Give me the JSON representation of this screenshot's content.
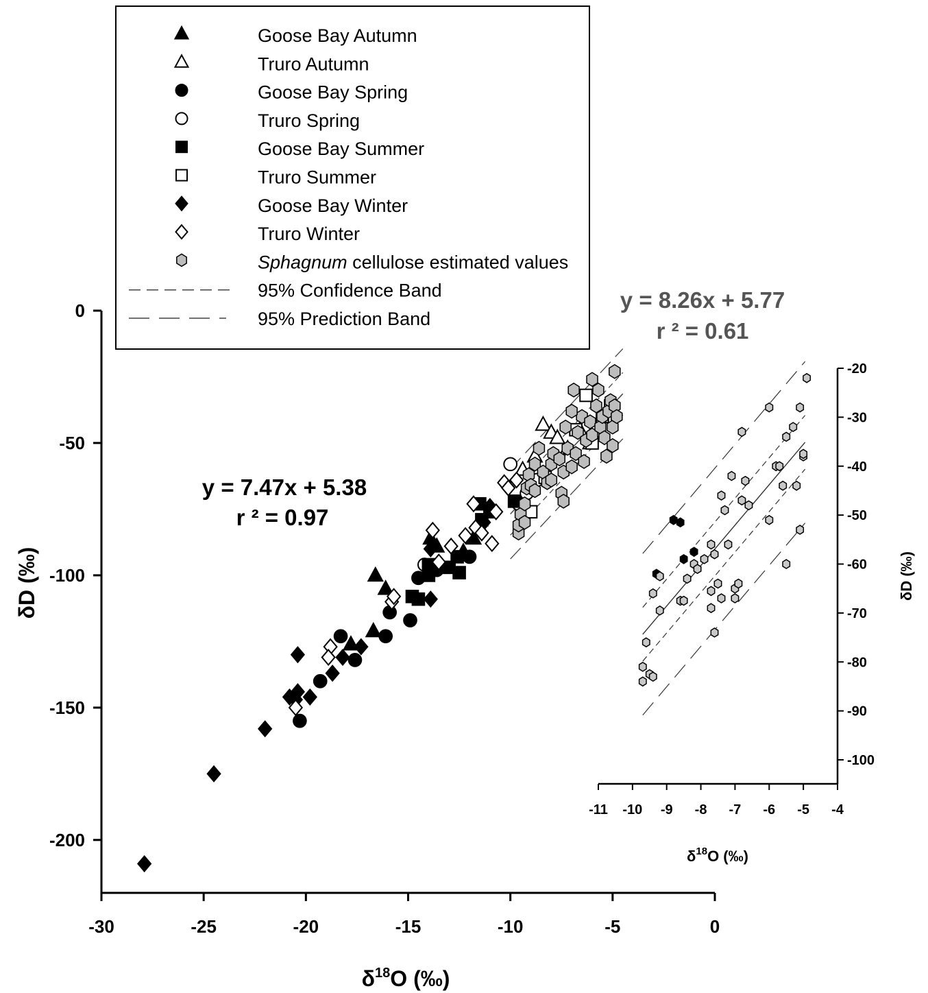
{
  "chart_data": [
    {
      "type": "scatter",
      "xlabel_prefix": "δ",
      "xlabel_sup": "18",
      "xlabel_suffix": "O (‰)",
      "ylabel": "δD (‰)",
      "xlim": [
        -30,
        0
      ],
      "ylim": [
        -220,
        0
      ],
      "x_ticks": [
        -30,
        -25,
        -20,
        -15,
        -10,
        -5,
        0
      ],
      "y_ticks": [
        0,
        -50,
        -100,
        -150,
        -200
      ],
      "equation": "y = 7.47x + 5.38",
      "r2": "r ² = 0.97",
      "regression": {
        "slope": 7.47,
        "intercept": 5.38
      },
      "series": [
        {
          "name": "Goose Bay Autumn",
          "marker": "triangle",
          "fill": "#000000",
          "points": [
            [
              -16.6,
              -100
            ],
            [
              -16.1,
              -105
            ],
            [
              -16.7,
              -121
            ],
            [
              -17.8,
              -126
            ],
            [
              -13.9,
              -86
            ],
            [
              -13.6,
              -89
            ],
            [
              -11.8,
              -86
            ],
            [
              -12.3,
              -91
            ]
          ]
        },
        {
          "name": "Truro Autumn",
          "marker": "triangle",
          "fill": "#ffffff",
          "points": [
            [
              -8.4,
              -43
            ],
            [
              -8.0,
              -46
            ],
            [
              -7.7,
              -48
            ],
            [
              -8.8,
              -55
            ],
            [
              -7.2,
              -52
            ],
            [
              -6.6,
              -45
            ],
            [
              -6.1,
              -50
            ],
            [
              -9.4,
              -60
            ]
          ]
        },
        {
          "name": "Goose Bay Spring",
          "marker": "circle",
          "fill": "#000000",
          "points": [
            [
              -20.3,
              -155
            ],
            [
              -19.3,
              -140
            ],
            [
              -18.3,
              -123
            ],
            [
              -17.6,
              -132
            ],
            [
              -16.1,
              -123
            ],
            [
              -15.9,
              -114
            ],
            [
              -14.9,
              -117
            ],
            [
              -14.5,
              -101
            ],
            [
              -12.0,
              -93
            ],
            [
              -13.6,
              -98
            ]
          ]
        },
        {
          "name": "Truro Spring",
          "marker": "circle",
          "fill": "#ffffff",
          "points": [
            [
              -10.0,
              -58
            ],
            [
              -9.6,
              -73
            ],
            [
              -9.2,
              -69
            ],
            [
              -14.2,
              -96
            ],
            [
              -8.7,
              -64
            ]
          ]
        },
        {
          "name": "Goose Bay Summer",
          "marker": "square",
          "fill": "#000000",
          "points": [
            [
              -14.8,
              -108
            ],
            [
              -14.5,
              -109
            ],
            [
              -14.0,
              -100
            ],
            [
              -13.8,
              -97
            ],
            [
              -13.0,
              -97
            ],
            [
              -12.6,
              -93
            ],
            [
              -12.5,
              -99
            ],
            [
              -11.5,
              -73
            ],
            [
              -11.4,
              -79
            ],
            [
              -11.0,
              -76
            ],
            [
              -9.8,
              -72
            ],
            [
              -14.0,
              -96
            ]
          ]
        },
        {
          "name": "Truro Summer",
          "marker": "square",
          "fill": "#ffffff",
          "points": [
            [
              -6.0,
              -50
            ],
            [
              -5.5,
              -40
            ],
            [
              -5.1,
              -36
            ],
            [
              -6.3,
              -32
            ],
            [
              -6.8,
              -45
            ],
            [
              -9.0,
              -76
            ],
            [
              -8.3,
              -63
            ]
          ]
        },
        {
          "name": "Goose Bay Winter",
          "marker": "diamond",
          "fill": "#000000",
          "points": [
            [
              -27.9,
              -209
            ],
            [
              -24.5,
              -175
            ],
            [
              -22.0,
              -158
            ],
            [
              -20.8,
              -146
            ],
            [
              -20.5,
              -147
            ],
            [
              -20.4,
              -144
            ],
            [
              -20.4,
              -130
            ],
            [
              -19.8,
              -146
            ],
            [
              -18.7,
              -137
            ],
            [
              -18.2,
              -131
            ],
            [
              -17.3,
              -127
            ],
            [
              -13.9,
              -109
            ],
            [
              -13.9,
              -90
            ],
            [
              -11.3,
              -80
            ],
            [
              -11.0,
              -74
            ]
          ]
        },
        {
          "name": "Truro Winter",
          "marker": "diamond",
          "fill": "#ffffff",
          "points": [
            [
              -20.5,
              -150
            ],
            [
              -18.8,
              -127
            ],
            [
              -18.9,
              -131
            ],
            [
              -15.8,
              -110
            ],
            [
              -15.7,
              -108
            ],
            [
              -13.8,
              -83
            ],
            [
              -13.5,
              -95
            ],
            [
              -12.9,
              -89
            ],
            [
              -12.2,
              -85
            ],
            [
              -11.8,
              -73
            ],
            [
              -11.7,
              -82
            ],
            [
              -11.4,
              -84
            ],
            [
              -10.9,
              -88
            ],
            [
              -10.7,
              -76
            ],
            [
              -10.3,
              -65
            ],
            [
              -10.1,
              -67
            ],
            [
              -9.7,
              -64
            ]
          ]
        },
        {
          "name": "Sphagnum cellulose estimated values",
          "marker": "hexagon",
          "fill": "#bdbdbd",
          "points": [
            [
              -9.6,
              -84
            ],
            [
              -9.6,
              -81
            ],
            [
              -9.5,
              -77
            ],
            [
              -9.3,
              -80
            ],
            [
              -9.3,
              -73
            ],
            [
              -9.2,
              -67
            ],
            [
              -9.1,
              -62
            ],
            [
              -9.0,
              -66
            ],
            [
              -8.8,
              -68
            ],
            [
              -8.8,
              -58
            ],
            [
              -8.6,
              -52
            ],
            [
              -8.4,
              -61
            ],
            [
              -8.2,
              -65
            ],
            [
              -8.0,
              -58
            ],
            [
              -7.9,
              -54
            ],
            [
              -7.6,
              -56
            ],
            [
              -7.5,
              -69
            ],
            [
              -7.4,
              -72
            ],
            [
              -7.4,
              -61
            ],
            [
              -7.3,
              -44
            ],
            [
              -7.2,
              -52
            ],
            [
              -7.0,
              -59
            ],
            [
              -6.8,
              -54
            ],
            [
              -6.7,
              -46
            ],
            [
              -6.5,
              -40
            ],
            [
              -6.4,
              -57
            ],
            [
              -6.3,
              -49
            ],
            [
              -6.1,
              -42
            ],
            [
              -6.0,
              -47
            ],
            [
              -5.8,
              -36
            ],
            [
              -5.7,
              -30
            ],
            [
              -5.6,
              -44
            ],
            [
              -5.5,
              -40
            ],
            [
              -5.4,
              -48
            ],
            [
              -5.3,
              -55
            ],
            [
              -5.2,
              -38
            ],
            [
              -5.1,
              -34
            ],
            [
              -5.0,
              -44
            ],
            [
              -5.0,
              -51
            ],
            [
              -4.9,
              -36
            ],
            [
              -4.9,
              -23
            ],
            [
              -4.8,
              -40
            ],
            [
              -6.9,
              -30
            ],
            [
              -6.0,
              -26
            ],
            [
              -8.0,
              -64
            ],
            [
              -7.0,
              -38
            ]
          ]
        }
      ]
    },
    {
      "type": "scatter",
      "xlabel_prefix": "δ",
      "xlabel_sup": "18",
      "xlabel_suffix": "O (‰)",
      "ylabel": "δD (‰)",
      "xlim": [
        -11,
        -4
      ],
      "ylim": [
        -105,
        -20
      ],
      "x_ticks": [
        -11,
        -10,
        -9,
        -8,
        -7,
        -6,
        -5,
        -4
      ],
      "y_ticks": [
        -20,
        -30,
        -40,
        -50,
        -60,
        -70,
        -80,
        -90,
        -100
      ],
      "equation": "y = 8.26x + 5.77",
      "r2": "r ² = 0.61",
      "regression": {
        "slope": 8.26,
        "intercept": 5.77
      },
      "series": [
        {
          "name": "Goose Bay",
          "marker": "hexagon",
          "fill": "#000000",
          "points": [
            [
              -8.8,
              -51
            ],
            [
              -8.6,
              -51.5
            ],
            [
              -8.5,
              -59
            ],
            [
              -8.2,
              -57.5
            ],
            [
              -9.3,
              -62
            ]
          ]
        },
        {
          "name": "Sphagnum cellulose estimated values",
          "marker": "hexagon",
          "fill": "#c8c8c8",
          "points": [
            [
              -9.7,
              -81
            ],
            [
              -9.7,
              -84
            ],
            [
              -9.6,
              -76
            ],
            [
              -9.5,
              -82.5
            ],
            [
              -9.4,
              -83
            ],
            [
              -9.4,
              -66
            ],
            [
              -9.2,
              -62.5
            ],
            [
              -9.2,
              -69.5
            ],
            [
              -8.6,
              -67.5
            ],
            [
              -8.5,
              -67.5
            ],
            [
              -8.4,
              -63
            ],
            [
              -8.2,
              -60
            ],
            [
              -8.1,
              -61
            ],
            [
              -7.9,
              -59
            ],
            [
              -7.7,
              -56
            ],
            [
              -7.6,
              -58
            ],
            [
              -7.7,
              -65.5
            ],
            [
              -7.7,
              -69
            ],
            [
              -7.6,
              -74
            ],
            [
              -7.5,
              -64
            ],
            [
              -7.4,
              -67
            ],
            [
              -7.4,
              -46
            ],
            [
              -7.3,
              -49
            ],
            [
              -7.2,
              -56
            ],
            [
              -7.1,
              -42
            ],
            [
              -7.0,
              -67
            ],
            [
              -7.0,
              -65
            ],
            [
              -6.9,
              -64
            ],
            [
              -6.8,
              -47
            ],
            [
              -6.8,
              -33
            ],
            [
              -6.7,
              -43
            ],
            [
              -6.6,
              -48
            ],
            [
              -6.0,
              -51
            ],
            [
              -6.0,
              -28
            ],
            [
              -5.8,
              -40
            ],
            [
              -5.7,
              -40
            ],
            [
              -5.6,
              -44
            ],
            [
              -5.5,
              -34
            ],
            [
              -5.5,
              -60
            ],
            [
              -5.3,
              -32
            ],
            [
              -5.2,
              -44
            ],
            [
              -5.1,
              -28
            ],
            [
              -5.1,
              -53
            ],
            [
              -5.0,
              -38
            ],
            [
              -4.9,
              -22
            ],
            [
              -5.0,
              -37.5
            ]
          ]
        }
      ]
    }
  ],
  "legend": {
    "items": [
      {
        "label": "Goose Bay Autumn",
        "marker": "triangle",
        "fill": "#000000"
      },
      {
        "label": "Truro Autumn",
        "marker": "triangle",
        "fill": "#ffffff"
      },
      {
        "label": "Goose Bay Spring",
        "marker": "circle",
        "fill": "#000000"
      },
      {
        "label": "Truro Spring",
        "marker": "circle",
        "fill": "#ffffff"
      },
      {
        "label": "Goose Bay Summer",
        "marker": "square",
        "fill": "#000000"
      },
      {
        "label": "Truro Summer",
        "marker": "square",
        "fill": "#ffffff"
      },
      {
        "label": "Goose Bay Winter",
        "marker": "diamond",
        "fill": "#000000"
      },
      {
        "label": "Truro Winter",
        "marker": "diamond",
        "fill": "#ffffff"
      },
      {
        "label_italic": "Sphagnum",
        "label_rest": " cellulose estimated values",
        "marker": "hexagon",
        "fill": "#bdbdbd"
      },
      {
        "label": "95% Confidence Band",
        "marker": "dash-short"
      },
      {
        "label": "95% Prediction Band",
        "marker": "dash-long"
      }
    ]
  }
}
